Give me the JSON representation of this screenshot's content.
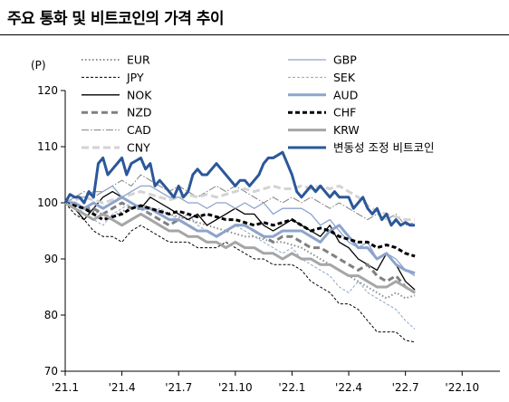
{
  "title": "주요 통화 및 비트코인의 가격 추이",
  "chart_data": {
    "type": "line",
    "title": "주요 통화 및 비트코인의 가격 추이",
    "ylabel": "(P)",
    "ylim": [
      70,
      120
    ],
    "yticks": [
      70,
      80,
      90,
      100,
      110,
      120
    ],
    "x_range": [
      0,
      23
    ],
    "x_ticks": [
      {
        "label": "'21.1",
        "x": 0
      },
      {
        "label": "'21.4",
        "x": 3
      },
      {
        "label": "'21.7",
        "x": 6
      },
      {
        "label": "'21.10",
        "x": 9
      },
      {
        "label": "'22.1",
        "x": 12
      },
      {
        "label": "'22.4",
        "x": 15
      },
      {
        "label": "'22.7",
        "x": 18
      },
      {
        "label": "'22.10",
        "x": 21
      }
    ],
    "x_unit_note": "x = months since 2021-01",
    "series": [
      {
        "name": "EUR",
        "color": "#8c8c8c",
        "dash": "1.5,2.5",
        "width": 2,
        "x": [
          0,
          0.5,
          1,
          1.5,
          2,
          2.5,
          3,
          3.5,
          4,
          4.5,
          5,
          5.5,
          6,
          6.5,
          7,
          7.5,
          8,
          8.5,
          9,
          9.5,
          10,
          10.5,
          11,
          11.5,
          12,
          12.5,
          13,
          13.5,
          14,
          14.5,
          15,
          15.5,
          16,
          16.5,
          17,
          17.5,
          18,
          18.5
        ],
        "y": [
          100,
          99.5,
          99,
          98.5,
          98,
          97.5,
          98.5,
          99,
          99.5,
          99,
          98.5,
          98,
          97.5,
          97,
          96.5,
          96,
          95.5,
          95,
          94.5,
          94,
          94,
          93.5,
          93,
          93,
          92.5,
          92,
          91,
          90,
          89,
          88,
          87,
          86,
          85,
          84,
          83,
          84,
          83,
          83.5
        ]
      },
      {
        "name": "JPY",
        "color": "#000000",
        "dash": "3,2",
        "width": 1,
        "x": [
          0,
          0.5,
          1,
          1.5,
          2,
          2.5,
          3,
          3.5,
          4,
          4.5,
          5,
          5.5,
          6,
          6.5,
          7,
          7.5,
          8,
          8.5,
          9,
          9.5,
          10,
          10.5,
          11,
          11.5,
          12,
          12.5,
          13,
          13.5,
          14,
          14.5,
          15,
          15.5,
          16,
          16.5,
          17,
          17.5,
          18,
          18.5
        ],
        "y": [
          100,
          98,
          97,
          95,
          94,
          94,
          93,
          95,
          96,
          95,
          94,
          93,
          93,
          93,
          92,
          92,
          92,
          93,
          92,
          91,
          90,
          90,
          89,
          89,
          89,
          88,
          86,
          85,
          84,
          82,
          82,
          81,
          79,
          77,
          77,
          77,
          75.5,
          75.2
        ]
      },
      {
        "name": "NOK",
        "color": "#000000",
        "dash": "",
        "width": 1.3,
        "x": [
          0,
          0.5,
          1,
          1.5,
          2,
          2.5,
          3,
          3.5,
          4,
          4.5,
          5,
          5.5,
          6,
          6.5,
          7,
          7.5,
          8,
          8.5,
          9,
          9.5,
          10,
          10.5,
          11,
          11.5,
          12,
          12.5,
          13,
          13.5,
          14,
          14.5,
          15,
          15.5,
          16,
          16.5,
          17,
          17.5,
          18,
          18.5
        ],
        "y": [
          100,
          99,
          97,
          99,
          101,
          102,
          101,
          100,
          99,
          101,
          100,
          99,
          98,
          97,
          98,
          96,
          97,
          98,
          99,
          98,
          98,
          96,
          95,
          96,
          97,
          96,
          95,
          94,
          96,
          93,
          92,
          90,
          89,
          88,
          91,
          89,
          86,
          84.5
        ]
      },
      {
        "name": "NZD",
        "color": "#808080",
        "dash": "7,4",
        "width": 3,
        "x": [
          0,
          0.5,
          1,
          1.5,
          2,
          2.5,
          3,
          3.5,
          4,
          4.5,
          5,
          5.5,
          6,
          6.5,
          7,
          7.5,
          8,
          8.5,
          9,
          9.5,
          10,
          10.5,
          11,
          11.5,
          12,
          12.5,
          13,
          13.5,
          14,
          14.5,
          15,
          15.5,
          16,
          16.5,
          17,
          17.5,
          18,
          18.5
        ],
        "y": [
          100,
          100,
          99,
          99,
          98,
          99,
          100,
          99,
          99,
          98,
          97,
          96,
          97,
          96,
          95,
          95,
          94,
          95,
          96,
          96,
          95,
          94,
          93,
          94,
          94,
          93,
          92,
          92,
          91,
          90,
          89,
          88,
          89,
          87,
          86,
          87,
          85,
          84
        ]
      },
      {
        "name": "CAD",
        "color": "#808080",
        "dash": "8,2,1.5,2",
        "width": 1,
        "x": [
          0,
          0.5,
          1,
          1.5,
          2,
          2.5,
          3,
          3.5,
          4,
          4.5,
          5,
          5.5,
          6,
          6.5,
          7,
          7.5,
          8,
          8.5,
          9,
          9.5,
          10,
          10.5,
          11,
          11.5,
          12,
          12.5,
          13,
          13.5,
          14,
          14.5,
          15,
          15.5,
          16,
          16.5,
          17,
          17.5,
          18,
          18.5
        ],
        "y": [
          100,
          101,
          102,
          101,
          102,
          103,
          104,
          103,
          105,
          104,
          103,
          102,
          103,
          102,
          101,
          102,
          103,
          102,
          103,
          102,
          101,
          100,
          101,
          100,
          101,
          100,
          101,
          100,
          99,
          100,
          99,
          98,
          97,
          98,
          97,
          98,
          96,
          96.5
        ]
      },
      {
        "name": "CNY",
        "color": "#d3d3d3",
        "dash": "8,4",
        "width": 3,
        "x": [
          0,
          0.5,
          1,
          1.5,
          2,
          2.5,
          3,
          3.5,
          4,
          4.5,
          5,
          5.5,
          6,
          6.5,
          7,
          7.5,
          8,
          8.5,
          9,
          9.5,
          10,
          10.5,
          11,
          11.5,
          12,
          12.5,
          13,
          13.5,
          14,
          14.5,
          15,
          15.5,
          16,
          16.5,
          17,
          17.5,
          18,
          18.5
        ],
        "y": [
          100,
          100.5,
          101,
          100.5,
          100,
          100.5,
          101,
          101.5,
          102,
          101.5,
          101,
          100.5,
          101,
          101.5,
          101,
          101.5,
          101,
          101.5,
          102,
          102.5,
          102,
          102.5,
          103,
          102.5,
          102.5,
          103,
          102.5,
          103,
          102.5,
          103,
          102,
          101,
          99.5,
          98.5,
          98,
          97.5,
          97,
          97
        ]
      },
      {
        "name": "GBP",
        "color": "#8ea4cc",
        "dash": "",
        "width": 1.3,
        "x": [
          0,
          0.5,
          1,
          1.5,
          2,
          2.5,
          3,
          3.5,
          4,
          4.5,
          5,
          5.5,
          6,
          6.5,
          7,
          7.5,
          8,
          8.5,
          9,
          9.5,
          10,
          10.5,
          11,
          11.5,
          12,
          12.5,
          13,
          13.5,
          14,
          14.5,
          15,
          15.5,
          16,
          16.5,
          17,
          17.5,
          18,
          18.5
        ],
        "y": [
          100,
          101,
          101,
          102,
          102,
          103,
          101,
          102,
          103,
          103,
          102,
          101,
          101,
          100,
          100,
          99,
          100,
          100,
          99,
          100,
          99,
          100,
          98,
          99,
          99,
          99,
          98,
          96,
          97,
          95,
          93,
          92,
          93,
          90,
          91,
          90,
          88,
          87
        ]
      },
      {
        "name": "SEK",
        "color": "#8ea4cc",
        "dash": "3,2",
        "width": 1,
        "x": [
          0,
          0.5,
          1,
          1.5,
          2,
          2.5,
          3,
          3.5,
          4,
          4.5,
          5,
          5.5,
          6,
          6.5,
          7,
          7.5,
          8,
          8.5,
          9,
          9.5,
          10,
          10.5,
          11,
          11.5,
          12,
          12.5,
          13,
          13.5,
          14,
          14.5,
          15,
          15.5,
          16,
          16.5,
          17,
          17.5,
          18,
          18.5
        ],
        "y": [
          100,
          100,
          98,
          97,
          96,
          98,
          99,
          100,
          99,
          98,
          99,
          98,
          97,
          98,
          96,
          95,
          94,
          95,
          96,
          95,
          94,
          93,
          92,
          91,
          92,
          90,
          89,
          88,
          87,
          85,
          84,
          86,
          84,
          83,
          82,
          81,
          79,
          77.5
        ]
      },
      {
        "name": "AUD",
        "color": "#8ea4cc",
        "dash": "",
        "width": 3,
        "x": [
          0,
          0.5,
          1,
          1.5,
          2,
          2.5,
          3,
          3.5,
          4,
          4.5,
          5,
          5.5,
          6,
          6.5,
          7,
          7.5,
          8,
          8.5,
          9,
          9.5,
          10,
          10.5,
          11,
          11.5,
          12,
          12.5,
          13,
          13.5,
          14,
          14.5,
          15,
          15.5,
          16,
          16.5,
          17,
          17.5,
          18,
          18.5
        ],
        "y": [
          100,
          100,
          99,
          100,
          99,
          100,
          101,
          100,
          99,
          99,
          98,
          97,
          97,
          96,
          95,
          95,
          94,
          95,
          96,
          96,
          95,
          94,
          94,
          95,
          95,
          95,
          94,
          93,
          95,
          96,
          94,
          92,
          92,
          90,
          91,
          89,
          88,
          87.5
        ]
      },
      {
        "name": "CHF",
        "color": "#000000",
        "dash": "5,3",
        "width": 3,
        "x": [
          0,
          0.5,
          1,
          1.5,
          2,
          2.5,
          3,
          3.5,
          4,
          4.5,
          5,
          5.5,
          6,
          6.5,
          7,
          7.5,
          8,
          8.5,
          9,
          9.5,
          10,
          10.5,
          11,
          11.5,
          12,
          12.5,
          13,
          13.5,
          14,
          14.5,
          15,
          15.5,
          16,
          16.5,
          17,
          17.5,
          18,
          18.5
        ],
        "y": [
          100,
          99.5,
          99,
          98,
          97,
          97.5,
          98,
          99,
          99.5,
          99,
          98.5,
          98,
          98.5,
          98,
          97.5,
          98,
          97.5,
          97,
          97,
          96.5,
          96,
          96.5,
          96,
          96.5,
          97,
          96,
          95,
          95.5,
          95,
          94,
          93.5,
          93,
          93,
          92,
          92.5,
          92,
          91,
          90.5
        ]
      },
      {
        "name": "KRW",
        "color": "#a6a6a6",
        "dash": "",
        "width": 3,
        "x": [
          0,
          0.5,
          1,
          1.5,
          2,
          2.5,
          3,
          3.5,
          4,
          4.5,
          5,
          5.5,
          6,
          6.5,
          7,
          7.5,
          8,
          8.5,
          9,
          9.5,
          10,
          10.5,
          11,
          11.5,
          12,
          12.5,
          13,
          13.5,
          14,
          14.5,
          15,
          15.5,
          16,
          16.5,
          17,
          17.5,
          18,
          18.5
        ],
        "y": [
          100,
          99,
          98,
          97,
          98,
          97,
          96,
          97,
          98,
          97,
          96,
          95,
          95,
          94,
          94,
          93,
          93,
          92,
          93,
          92,
          92,
          91,
          91,
          90,
          91,
          90,
          90,
          89,
          89,
          88,
          87,
          87,
          86,
          85,
          85,
          86,
          85,
          84
        ]
      },
      {
        "name": "변동성 조정 비트코인",
        "color": "#2b579a",
        "dash": "",
        "width": 3,
        "x": [
          0,
          0.25,
          0.5,
          0.75,
          1,
          1.25,
          1.5,
          1.75,
          2,
          2.25,
          2.5,
          2.75,
          3,
          3.25,
          3.5,
          3.75,
          4,
          4.25,
          4.5,
          4.75,
          5,
          5.25,
          5.5,
          5.75,
          6,
          6.25,
          6.5,
          6.75,
          7,
          7.25,
          7.5,
          7.75,
          8,
          8.25,
          8.5,
          8.75,
          9,
          9.25,
          9.5,
          9.75,
          10,
          10.25,
          10.5,
          10.75,
          11,
          11.25,
          11.5,
          11.75,
          12,
          12.25,
          12.5,
          12.75,
          13,
          13.25,
          13.5,
          13.75,
          14,
          14.25,
          14.5,
          14.75,
          15,
          15.25,
          15.5,
          15.75,
          16,
          16.25,
          16.5,
          16.75,
          17,
          17.25,
          17.5,
          17.75,
          18,
          18.25,
          18.5
        ],
        "y": [
          100,
          101.5,
          101,
          101,
          100,
          102,
          101,
          107,
          108,
          105,
          106,
          107,
          108,
          105,
          107,
          107.5,
          108,
          106,
          107,
          103,
          104,
          103,
          102,
          101,
          103,
          101,
          102,
          105,
          106,
          105,
          105,
          106,
          107,
          106,
          105,
          104,
          103,
          104,
          104,
          103,
          104,
          105,
          107,
          108,
          108,
          108.5,
          109,
          107,
          105,
          102,
          101,
          102,
          103,
          102,
          103,
          102,
          101,
          102,
          101,
          101,
          101,
          99,
          100,
          101,
          99,
          98,
          99,
          97,
          98,
          96,
          97,
          96,
          96.5,
          96,
          96
        ]
      }
    ]
  }
}
